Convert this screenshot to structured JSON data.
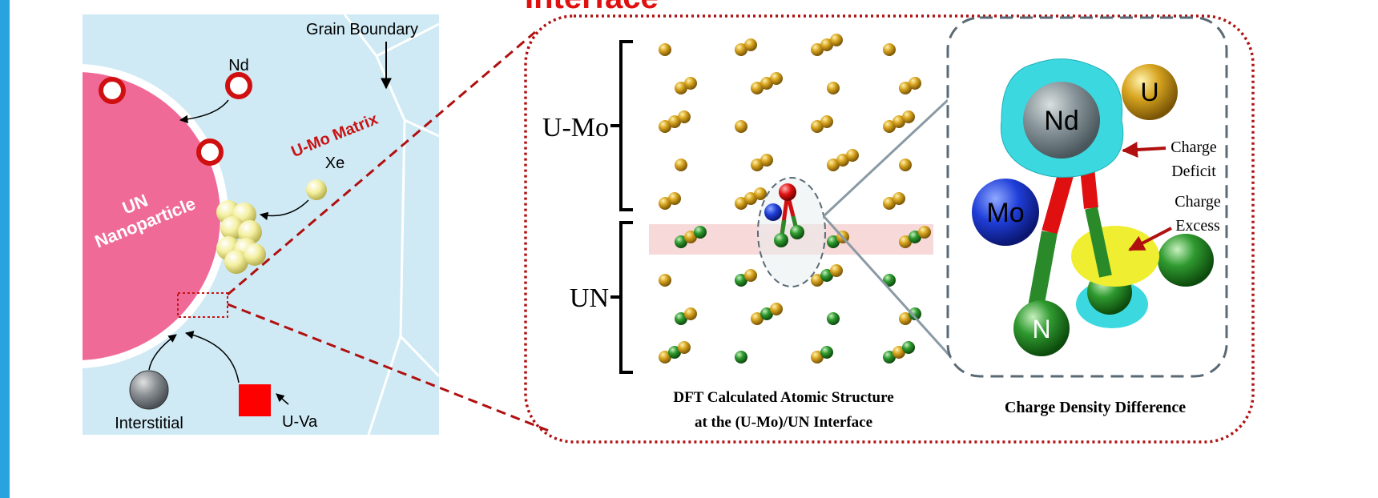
{
  "title": "Interface",
  "left_panel": {
    "grain_boundary": "Grain Boundary",
    "nd": "Nd",
    "matrix": "U-Mo Matrix",
    "xe": "Xe",
    "nanoparticle": [
      "UN",
      "Nanoparticle"
    ],
    "interstitial": "Interstitial",
    "vacancy": "U-Va"
  },
  "structure_panel": {
    "region_top": "U-Mo",
    "region_bottom": "UN",
    "caption": [
      "DFT Calculated Atomic Structure",
      "at the (U-Mo)/UN Interface"
    ]
  },
  "charge_panel": {
    "atoms": {
      "u": "U",
      "nd": "Nd",
      "mo": "Mo",
      "n": "N"
    },
    "deficit": [
      "Charge",
      "Deficit"
    ],
    "excess": [
      "Charge",
      "Excess"
    ],
    "caption": "Charge Density Difference"
  }
}
